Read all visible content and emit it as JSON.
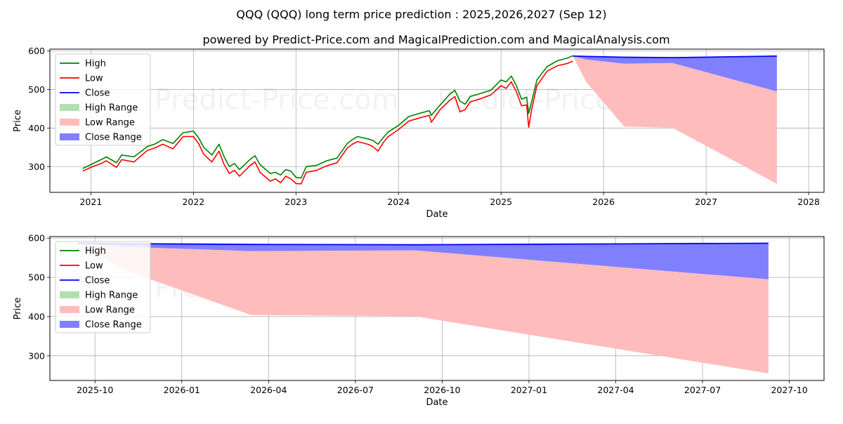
{
  "title": "QQQ (QQQ) long term price prediction : 2025,2026,2027 (Sep 12)",
  "subtitle": "powered by Predict-Price.com and MagicalPrediction.com and MagicalAnalysis.com",
  "watermark": "Predict-Price.com",
  "colors": {
    "high": "#008000",
    "low": "#ff0000",
    "close": "#0000ff",
    "high_range": "#b2dfb2",
    "low_range": "#ffbcbc",
    "close_range": "#8080ff"
  },
  "legend": {
    "high": "High",
    "low": "Low",
    "close": "Close",
    "high_range": "High Range",
    "low_range": "Low Range",
    "close_range": "Close Range"
  },
  "chart_data": [
    {
      "type": "line",
      "xlabel": "Date",
      "ylabel": "Price",
      "xlim": [
        2020.6,
        2028.15
      ],
      "ylim": [
        233,
        605
      ],
      "xticks": [
        2021,
        2022,
        2023,
        2024,
        2025,
        2026,
        2027,
        2028
      ],
      "xtick_labels": [
        "2021",
        "2022",
        "2023",
        "2024",
        "2025",
        "2026",
        "2027",
        "2028"
      ],
      "yticks": [
        300,
        400,
        500,
        600
      ],
      "ytick_labels": [
        "300",
        "400",
        "500",
        "600"
      ],
      "grid": true,
      "legend_position": "top-left",
      "history": {
        "x": [
          2020.92,
          2021.0,
          2021.1,
          2021.15,
          2021.25,
          2021.3,
          2021.42,
          2021.55,
          2021.62,
          2021.7,
          2021.8,
          2021.9,
          2022.0,
          2022.05,
          2022.1,
          2022.18,
          2022.25,
          2022.3,
          2022.35,
          2022.4,
          2022.45,
          2022.55,
          2022.6,
          2022.65,
          2022.75,
          2022.8,
          2022.85,
          2022.9,
          2022.95,
          2023.0,
          2023.05,
          2023.1,
          2023.2,
          2023.3,
          2023.4,
          2023.5,
          2023.55,
          2023.6,
          2023.7,
          2023.75,
          2023.8,
          2023.85,
          2023.9,
          2024.0,
          2024.1,
          2024.2,
          2024.3,
          2024.32,
          2024.4,
          2024.5,
          2024.55,
          2024.6,
          2024.65,
          2024.7,
          2024.8,
          2024.9,
          2025.0,
          2025.05,
          2025.1,
          2025.15,
          2025.2,
          2025.25,
          2025.27,
          2025.3,
          2025.35,
          2025.45,
          2025.55,
          2025.65,
          2025.7
        ],
        "high": [
          295,
          305,
          318,
          325,
          310,
          330,
          325,
          352,
          358,
          370,
          360,
          388,
          392,
          375,
          350,
          330,
          358,
          325,
          300,
          308,
          292,
          318,
          328,
          305,
          282,
          285,
          278,
          292,
          288,
          272,
          270,
          300,
          303,
          315,
          322,
          360,
          370,
          378,
          372,
          368,
          358,
          375,
          390,
          407,
          430,
          438,
          445,
          433,
          458,
          488,
          498,
          470,
          462,
          482,
          490,
          498,
          525,
          520,
          535,
          510,
          475,
          480,
          438,
          470,
          525,
          560,
          575,
          582,
          588
        ],
        "low": [
          288,
          298,
          308,
          315,
          298,
          318,
          312,
          342,
          348,
          358,
          346,
          378,
          378,
          360,
          332,
          312,
          340,
          305,
          282,
          290,
          275,
          302,
          312,
          285,
          262,
          268,
          258,
          275,
          268,
          256,
          255,
          285,
          290,
          302,
          310,
          348,
          358,
          365,
          358,
          352,
          340,
          362,
          378,
          396,
          418,
          426,
          433,
          415,
          446,
          472,
          482,
          442,
          448,
          468,
          476,
          486,
          510,
          503,
          520,
          494,
          458,
          460,
          402,
          450,
          510,
          548,
          562,
          568,
          574
        ],
        "close": [
          292,
          301,
          313,
          320,
          304,
          324,
          319,
          347,
          353,
          364,
          353,
          383,
          385,
          367,
          341,
          321,
          349,
          315,
          291,
          299,
          283,
          310,
          320,
          295,
          272,
          276,
          268,
          284,
          278,
          264,
          262,
          293,
          296,
          308,
          316,
          354,
          364,
          371,
          365,
          360,
          349,
          368,
          384,
          401,
          424,
          432,
          439,
          424,
          452,
          480,
          490,
          456,
          455,
          475,
          483,
          492,
          518,
          511,
          527,
          502,
          466,
          470,
          420,
          460,
          518,
          554,
          568,
          575,
          581
        ]
      },
      "forecast": {
        "x": [
          2025.7,
          2025.83,
          2026.2,
          2026.67,
          2027.69
        ],
        "close": [
          587,
          586,
          584,
          583,
          587
        ],
        "close_range_low": [
          587,
          578,
          567,
          569,
          495
        ],
        "low_range_high": [
          587,
          578,
          567,
          569,
          495
        ],
        "low_range_low": [
          587,
          520,
          404,
          401,
          255
        ]
      }
    },
    {
      "type": "line",
      "xlabel": "Date",
      "ylabel": "Price",
      "xlim": [
        2025.62,
        2027.85
      ],
      "ylim": [
        237,
        604
      ],
      "xticks": [
        2025.75,
        2026.0,
        2026.25,
        2026.5,
        2026.75,
        2027.0,
        2027.25,
        2027.5,
        2027.75
      ],
      "xtick_labels": [
        "2025-10",
        "2026-01",
        "2026-04",
        "2026-07",
        "2026-10",
        "2027-01",
        "2027-04",
        "2027-07",
        "2027-10"
      ],
      "yticks": [
        300,
        400,
        500,
        600
      ],
      "ytick_labels": [
        "300",
        "400",
        "500",
        "600"
      ],
      "grid": true,
      "legend_position": "top-left",
      "forecast": {
        "x": [
          2025.7,
          2025.83,
          2026.2,
          2026.67,
          2027.69
        ],
        "close": [
          587,
          586,
          584,
          583,
          587
        ],
        "close_range_low": [
          587,
          578,
          567,
          569,
          495
        ],
        "low_range_high": [
          587,
          578,
          567,
          569,
          495
        ],
        "low_range_low": [
          587,
          520,
          404,
          401,
          255
        ]
      }
    }
  ]
}
